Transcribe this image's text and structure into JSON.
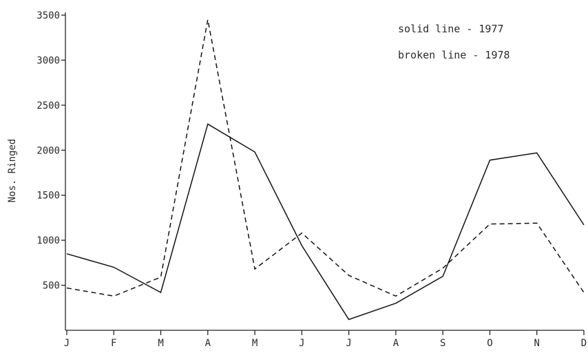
{
  "chart_data": {
    "type": "line",
    "title": "",
    "xlabel": "",
    "ylabel": "Nos. Ringed",
    "categories": [
      "J",
      "F",
      "M",
      "A",
      "M",
      "J",
      "J",
      "A",
      "S",
      "O",
      "N",
      "D"
    ],
    "ylim": [
      0,
      3500
    ],
    "yticks": [
      500,
      1000,
      1500,
      2000,
      2500,
      3000,
      3500
    ],
    "grid": false,
    "legend_position": "top-right",
    "legend": [
      "solid line - 1977",
      "broken line - 1978"
    ],
    "series": [
      {
        "name": "1977",
        "line_style": "solid",
        "values": [
          850,
          700,
          420,
          2290,
          1980,
          940,
          120,
          300,
          600,
          1890,
          1970,
          1170
        ]
      },
      {
        "name": "1978",
        "line_style": "dashed",
        "values": [
          470,
          380,
          590,
          3450,
          680,
          1080,
          610,
          380,
          690,
          1180,
          1190,
          420
        ]
      }
    ]
  }
}
